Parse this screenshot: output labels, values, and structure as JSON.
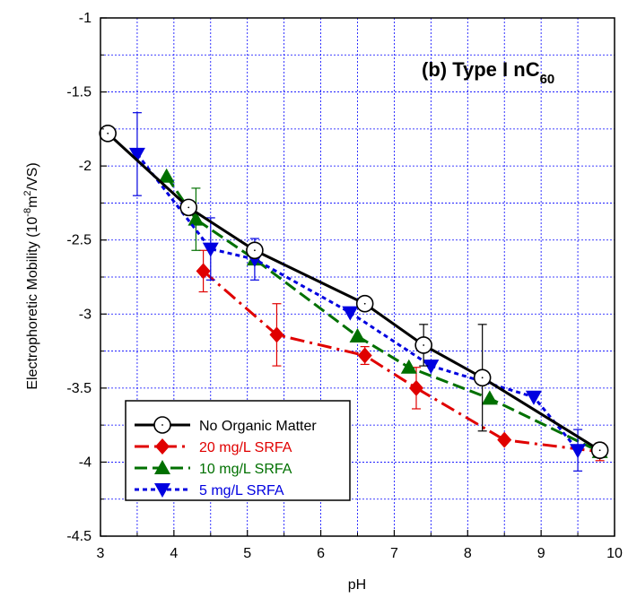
{
  "chart_data": {
    "type": "line",
    "title": {
      "prefix": "(b) Type I nC",
      "subscript": "60"
    },
    "xlabel": "pH",
    "ylabel": {
      "main": "Electrophoretic Mobility (10",
      "sup1": "-8",
      "mid": "m",
      "sup2": "2",
      "end": "/VS)"
    },
    "xlim": [
      3,
      10
    ],
    "ylim": [
      -4.5,
      -1
    ],
    "xticks": [
      3,
      4,
      5,
      6,
      7,
      8,
      9,
      10
    ],
    "yticks": [
      -1,
      -1.5,
      -2,
      -2.5,
      -3,
      -3.5,
      -4,
      -4.5
    ],
    "xtick_labels": [
      "3",
      "4",
      "5",
      "6",
      "7",
      "8",
      "9",
      "10"
    ],
    "ytick_labels": [
      "-1",
      "-1.5",
      "-2",
      "-2.5",
      "-3",
      "-3.5",
      "-4",
      "-4.5"
    ],
    "grid": true,
    "legend_position": "bottom-left",
    "series": [
      {
        "name": "No Organic Matter",
        "color": "#000000",
        "marker": "circle",
        "dash": "solid",
        "points": [
          {
            "x": 3.1,
            "y": -1.78
          },
          {
            "x": 4.2,
            "y": -2.28
          },
          {
            "x": 5.1,
            "y": -2.57
          },
          {
            "x": 6.6,
            "y": -2.93
          },
          {
            "x": 7.4,
            "y": -3.21,
            "err": 0.14
          },
          {
            "x": 8.2,
            "y": -3.43,
            "err": 0.36
          },
          {
            "x": 9.8,
            "y": -3.92
          }
        ]
      },
      {
        "name": "20 mg/L SRFA",
        "color": "#e00000",
        "marker": "diamond",
        "dash": "dashdot",
        "points": [
          {
            "x": 4.4,
            "y": -2.71,
            "err": 0.14
          },
          {
            "x": 5.4,
            "y": -3.14,
            "err": 0.21
          },
          {
            "x": 6.6,
            "y": -3.28,
            "err": 0.06
          },
          {
            "x": 7.3,
            "y": -3.5,
            "err": 0.14
          },
          {
            "x": 8.5,
            "y": -3.85
          },
          {
            "x": 9.8,
            "y": -3.93,
            "err": 0.06
          }
        ]
      },
      {
        "name": "10 mg/L SRFA",
        "color": "#007000",
        "marker": "triangle-up",
        "dash": "longdash",
        "points": [
          {
            "x": 3.9,
            "y": -2.07
          },
          {
            "x": 4.3,
            "y": -2.36,
            "err": 0.21
          },
          {
            "x": 5.1,
            "y": -2.63
          },
          {
            "x": 6.5,
            "y": -3.15
          },
          {
            "x": 7.2,
            "y": -3.36
          },
          {
            "x": 8.3,
            "y": -3.57
          },
          {
            "x": 9.8,
            "y": -3.93
          }
        ]
      },
      {
        "name": "5 mg/L SRFA",
        "color": "#0000e0",
        "marker": "triangle-down",
        "dash": "shortdash",
        "points": [
          {
            "x": 3.5,
            "y": -1.92,
            "err": 0.28
          },
          {
            "x": 4.5,
            "y": -2.56,
            "err": 0.21
          },
          {
            "x": 5.1,
            "y": -2.63,
            "err": 0.14
          },
          {
            "x": 6.4,
            "y": -2.99
          },
          {
            "x": 7.5,
            "y": -3.35
          },
          {
            "x": 8.9,
            "y": -3.56
          },
          {
            "x": 9.5,
            "y": -3.92,
            "err": 0.14
          }
        ]
      }
    ]
  }
}
